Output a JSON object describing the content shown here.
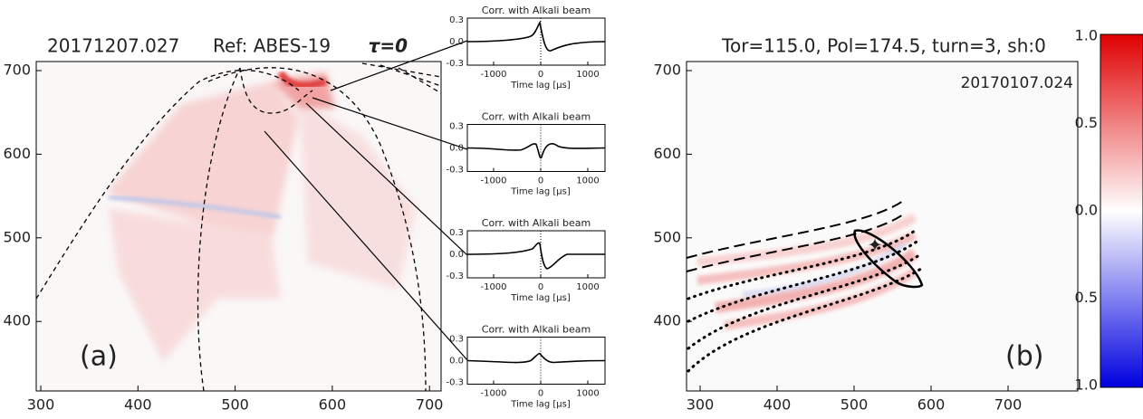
{
  "panel_a": {
    "title": "20171207.027",
    "ref": "Ref: ABES-19",
    "tau": "τ=0",
    "label": "(a)",
    "xticks": [
      "300",
      "400",
      "500",
      "600",
      "700"
    ],
    "yticks": [
      "700",
      "600",
      "500",
      "400"
    ]
  },
  "correlations": [
    {
      "title": "Corr. with Alkali beam",
      "yticks": [
        "0.3",
        "0.0",
        "-0.3"
      ],
      "xticks": [
        "-1000",
        "0",
        "1000"
      ],
      "xlabel": "Time lag [μs]"
    },
    {
      "title": "Corr. with Alkali beam",
      "yticks": [
        "0.3",
        "0.0",
        "-0.3"
      ],
      "xticks": [
        "-1000",
        "0",
        "1000"
      ],
      "xlabel": "Time lag [μs]"
    },
    {
      "title": "Corr. with Alkali beam",
      "yticks": [
        "0.3",
        "0.0",
        "-0.3"
      ],
      "xticks": [
        "-1000",
        "0",
        "1000"
      ],
      "xlabel": "Time lag [μs]"
    },
    {
      "title": "Corr. with Alkali beam",
      "yticks": [
        "0.3",
        "0.0",
        "-0.3"
      ],
      "xticks": [
        "-1000",
        "0",
        "1000"
      ],
      "xlabel": "Time lag [μs]"
    }
  ],
  "panel_b": {
    "title": "Tor=115.0, Pol=174.5, turn=3, sh:0",
    "shot": "20170107.024",
    "label": "(b)",
    "xticks": [
      "300",
      "400",
      "500",
      "600",
      "700"
    ],
    "yticks": [
      "700",
      "600",
      "500",
      "400"
    ]
  },
  "colorbar": {
    "ticks": [
      "1.0",
      "0.5",
      "0.0",
      "0.5",
      "1.0"
    ]
  }
}
